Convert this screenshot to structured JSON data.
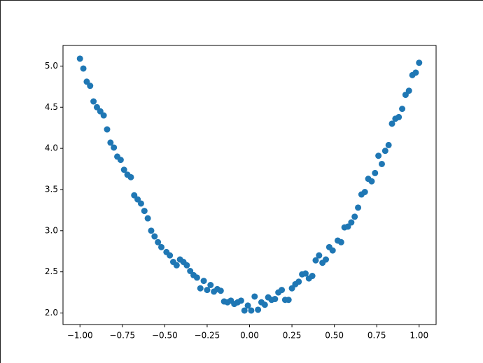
{
  "chart_data": {
    "type": "scatter",
    "color": "#1f77b4",
    "x": [
      -1.0,
      -0.98,
      -0.96,
      -0.94,
      -0.92,
      -0.9,
      -0.88,
      -0.86,
      -0.84,
      -0.82,
      -0.8,
      -0.78,
      -0.76,
      -0.74,
      -0.72,
      -0.7,
      -0.68,
      -0.66,
      -0.64,
      -0.62,
      -0.6,
      -0.58,
      -0.56,
      -0.54,
      -0.52,
      -0.49,
      -0.47,
      -0.45,
      -0.43,
      -0.41,
      -0.39,
      -0.37,
      -0.35,
      -0.33,
      -0.31,
      -0.29,
      -0.27,
      -0.25,
      -0.23,
      -0.21,
      -0.19,
      -0.17,
      -0.15,
      -0.13,
      -0.11,
      -0.09,
      -0.07,
      -0.05,
      -0.03,
      -0.01,
      0.01,
      0.03,
      0.05,
      0.07,
      0.09,
      0.11,
      0.13,
      0.15,
      0.17,
      0.19,
      0.21,
      0.23,
      0.25,
      0.27,
      0.29,
      0.31,
      0.33,
      0.35,
      0.37,
      0.39,
      0.41,
      0.43,
      0.45,
      0.47,
      0.49,
      0.52,
      0.54,
      0.56,
      0.58,
      0.6,
      0.62,
      0.64,
      0.66,
      0.68,
      0.7,
      0.72,
      0.74,
      0.76,
      0.78,
      0.8,
      0.82,
      0.84,
      0.86,
      0.88,
      0.9,
      0.92,
      0.94,
      0.96,
      0.98,
      1.0
    ],
    "values": [
      5.09,
      4.97,
      4.81,
      4.76,
      4.57,
      4.5,
      4.45,
      4.4,
      4.23,
      4.07,
      4.01,
      3.9,
      3.86,
      3.74,
      3.68,
      3.65,
      3.43,
      3.38,
      3.33,
      3.24,
      3.15,
      3.0,
      2.93,
      2.86,
      2.8,
      2.74,
      2.7,
      2.62,
      2.58,
      2.65,
      2.62,
      2.58,
      2.51,
      2.46,
      2.43,
      2.3,
      2.39,
      2.28,
      2.34,
      2.26,
      2.29,
      2.27,
      2.14,
      2.13,
      2.15,
      2.11,
      2.13,
      2.15,
      2.03,
      2.09,
      2.03,
      2.2,
      2.04,
      2.13,
      2.1,
      2.19,
      2.16,
      2.17,
      2.25,
      2.28,
      2.16,
      2.16,
      2.3,
      2.35,
      2.38,
      2.47,
      2.48,
      2.42,
      2.45,
      2.64,
      2.7,
      2.61,
      2.65,
      2.8,
      2.76,
      2.88,
      2.86,
      3.04,
      3.05,
      3.1,
      3.17,
      3.28,
      3.44,
      3.47,
      3.63,
      3.6,
      3.7,
      3.91,
      3.81,
      3.97,
      4.04,
      4.3,
      4.36,
      4.38,
      4.48,
      4.65,
      4.7,
      4.89,
      4.92,
      5.04
    ],
    "xlim": [
      -1.1,
      1.1
    ],
    "ylim": [
      1.86,
      5.25
    ],
    "xticks": [
      {
        "value": -1,
        "label": "−1.00"
      },
      {
        "value": -0.75,
        "label": "−0.75"
      },
      {
        "value": -0.5,
        "label": "−0.50"
      },
      {
        "value": -0.25,
        "label": "−0.25"
      },
      {
        "value": 0,
        "label": "0.00"
      },
      {
        "value": 0.25,
        "label": "0.25"
      },
      {
        "value": 0.5,
        "label": "0.50"
      },
      {
        "value": 0.75,
        "label": "0.75"
      },
      {
        "value": 1,
        "label": "1.00"
      }
    ],
    "yticks": [
      {
        "value": 2,
        "label": "2.0"
      },
      {
        "value": 2.5,
        "label": "2.5"
      },
      {
        "value": 3,
        "label": "3.0"
      },
      {
        "value": 3.5,
        "label": "3.5"
      },
      {
        "value": 4,
        "label": "4.0"
      },
      {
        "value": 4.5,
        "label": "4.5"
      },
      {
        "value": 5,
        "label": "5.0"
      }
    ]
  }
}
